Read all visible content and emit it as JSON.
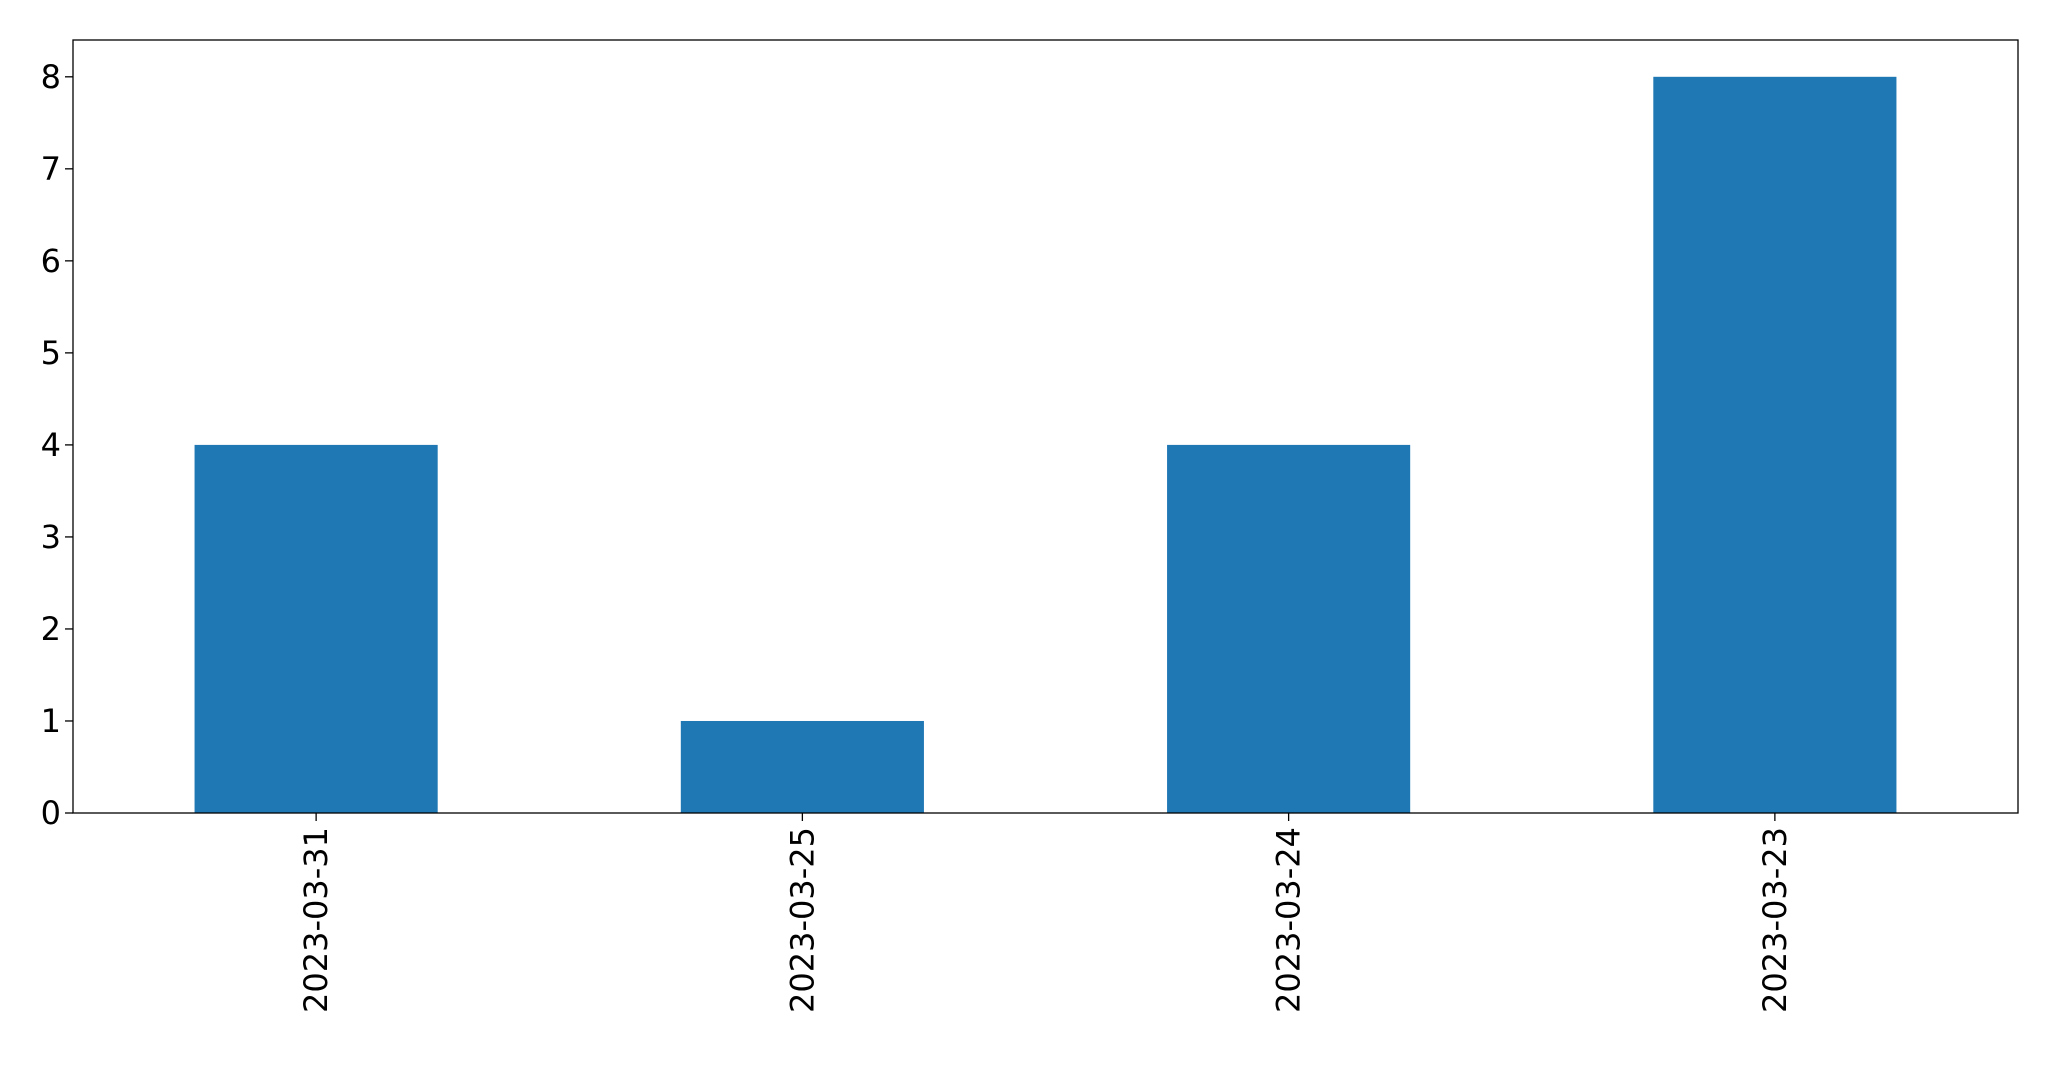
{
  "chart_data": {
    "type": "bar",
    "title": "",
    "xlabel": "",
    "ylabel": "",
    "categories": [
      "2023-03-31",
      "2023-03-25",
      "2023-03-24",
      "2023-03-23"
    ],
    "values": [
      4,
      1,
      4,
      8
    ],
    "ylim": [
      0,
      8.4
    ],
    "yticks": [
      0,
      1,
      2,
      3,
      4,
      5,
      6,
      7,
      8
    ],
    "bar_color": "#1f77b4",
    "axis_color": "#000000",
    "grid": false,
    "legend": "none"
  }
}
